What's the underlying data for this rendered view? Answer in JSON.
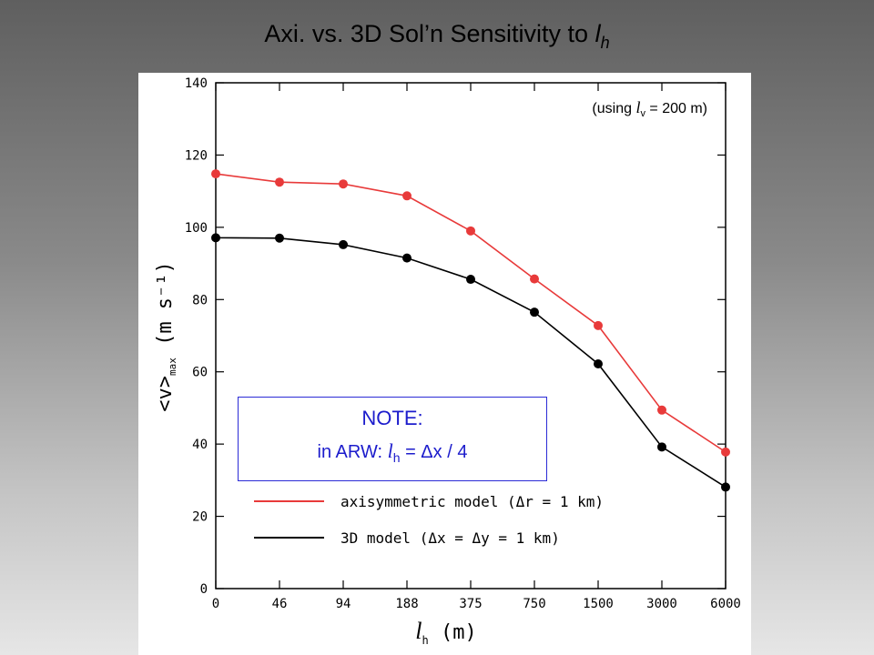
{
  "slide": {
    "title_prefix": "Axi. vs. 3D Sol’n Sensitivity to ",
    "title_letter": "l",
    "title_subscript": "h"
  },
  "annotation": {
    "prefix": "(using ",
    "letter": "l",
    "subscript": "v",
    "suffix": " = 200 m)"
  },
  "note": {
    "title": "NOTE:",
    "prefix": "in ARW:  ",
    "letter": "l",
    "subscript": "h",
    "suffix": " = Δx / 4"
  },
  "chart_data": {
    "type": "line",
    "categories": [
      "0",
      "46",
      "94",
      "188",
      "375",
      "750",
      "1500",
      "3000",
      "6000"
    ],
    "xlabel": "l_h (m)",
    "xlabel_letter": "l",
    "xlabel_subscript": "h",
    "xlabel_suffix": " (m)",
    "ylabel": "<v>max (m s⁻¹)",
    "ylabel_main": "<v>",
    "ylabel_sub": "max",
    "ylabel_suffix": " (m s⁻¹)",
    "ylim": [
      0,
      140
    ],
    "yticks": [
      0,
      20,
      40,
      60,
      80,
      100,
      120,
      140
    ],
    "grid": false,
    "legend_position": "bottom-left",
    "series": [
      {
        "name": "axisymmetric model (Δr = 1 km)",
        "color": "#e83a3a",
        "values": [
          114.8,
          112.5,
          112.0,
          108.7,
          99.0,
          85.7,
          72.8,
          49.4,
          37.8
        ]
      },
      {
        "name": "3D model (Δx = Δy = 1 km)",
        "color": "#000000",
        "values": [
          97.1,
          97.0,
          95.2,
          91.5,
          85.6,
          76.5,
          62.2,
          39.2,
          28.1
        ]
      }
    ]
  }
}
